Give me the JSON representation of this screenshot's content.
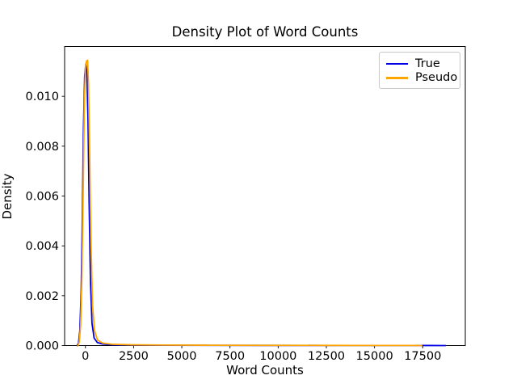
{
  "figure": {
    "background": "#ffffff"
  },
  "chart_data": {
    "type": "line",
    "title": "Density Plot of Word Counts",
    "xlabel": "Word Counts",
    "ylabel": "Density",
    "xlim": [
      -1080,
      19710
    ],
    "ylim": [
      0,
      0.012
    ],
    "xticks": [
      0,
      2500,
      5000,
      7500,
      10000,
      12500,
      15000,
      17500
    ],
    "xtick_labels": [
      "0",
      "2500",
      "5000",
      "7500",
      "10000",
      "12500",
      "15000",
      "17500"
    ],
    "yticks": [
      0.0,
      0.002,
      0.004,
      0.006,
      0.008,
      0.01
    ],
    "ytick_labels": [
      "0.000",
      "0.002",
      "0.004",
      "0.006",
      "0.008",
      "0.010"
    ],
    "grid": false,
    "spine_color": "#000000",
    "legend": {
      "position": "upper-right",
      "entries": [
        {
          "label": "True",
          "color": "#0000e6"
        },
        {
          "label": "Pseudo",
          "color": "#ffa500"
        }
      ]
    },
    "series": [
      {
        "name": "True",
        "color": "#0000e6",
        "peak": {
          "x": 20,
          "density": 0.0113
        },
        "points": [
          [
            -430,
            0
          ],
          [
            -360,
            0.0001
          ],
          [
            -290,
            0.0006
          ],
          [
            -220,
            0.0022
          ],
          [
            -160,
            0.0052
          ],
          [
            -100,
            0.0088
          ],
          [
            -40,
            0.0108
          ],
          [
            20,
            0.0113
          ],
          [
            70,
            0.011
          ],
          [
            130,
            0.0092
          ],
          [
            190,
            0.0058
          ],
          [
            260,
            0.0026
          ],
          [
            340,
            0.0009
          ],
          [
            450,
            0.0003
          ],
          [
            620,
            0.00012
          ],
          [
            900,
            6e-05
          ],
          [
            1400,
            3e-05
          ],
          [
            2400,
            2e-05
          ],
          [
            4000,
            1.3e-05
          ],
          [
            6500,
            9e-06
          ],
          [
            9500,
            6e-06
          ],
          [
            12500,
            5e-06
          ],
          [
            15000,
            4e-06
          ],
          [
            17000,
            3e-06
          ],
          [
            17900,
            2e-06
          ],
          [
            18400,
            1e-06
          ],
          [
            18680,
            0
          ]
        ]
      },
      {
        "name": "Pseudo",
        "color": "#ffa500",
        "peak": {
          "x": 110,
          "density": 0.01145
        },
        "points": [
          [
            -390,
            0
          ],
          [
            -320,
            0.00015
          ],
          [
            -250,
            0.0008
          ],
          [
            -180,
            0.0028
          ],
          [
            -120,
            0.006
          ],
          [
            -60,
            0.0095
          ],
          [
            0,
            0.0112
          ],
          [
            60,
            0.01142
          ],
          [
            110,
            0.01145
          ],
          [
            160,
            0.0105
          ],
          [
            220,
            0.0076
          ],
          [
            290,
            0.0041
          ],
          [
            370,
            0.0016
          ],
          [
            470,
            0.0006
          ],
          [
            630,
            0.00022
          ],
          [
            900,
            0.0001
          ],
          [
            1400,
            5e-05
          ],
          [
            2400,
            3e-05
          ],
          [
            4000,
            2e-05
          ],
          [
            6500,
            1.3e-05
          ],
          [
            9500,
            9e-06
          ],
          [
            12500,
            6e-06
          ],
          [
            15000,
            5e-06
          ],
          [
            16500,
            4e-06
          ],
          [
            17000,
            3e-06
          ],
          [
            17450,
            0
          ]
        ]
      }
    ]
  }
}
